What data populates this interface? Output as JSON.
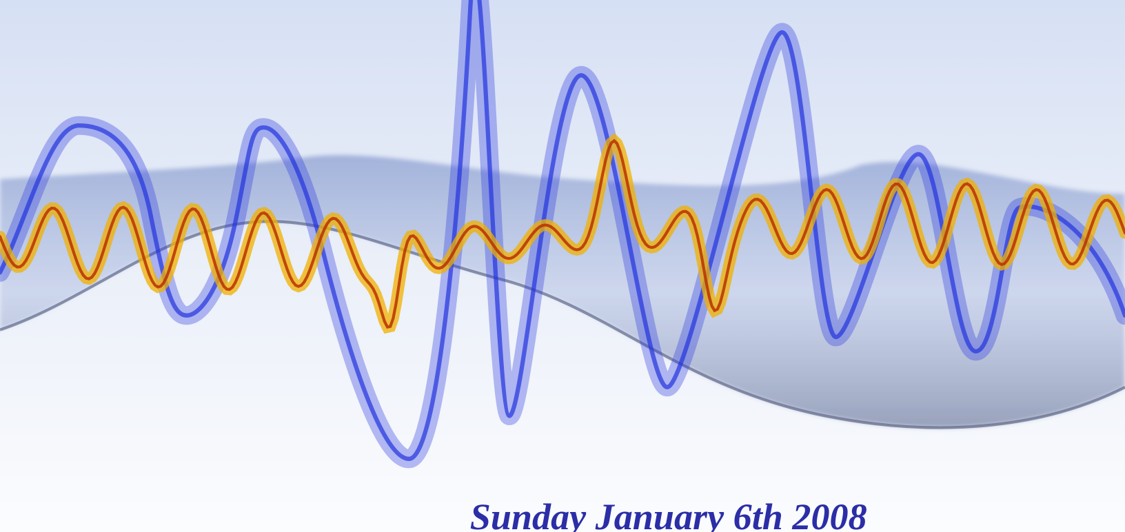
{
  "caption": "Sunday January 6th 2008"
}
